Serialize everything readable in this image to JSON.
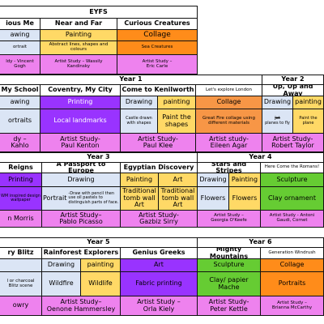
{
  "colors": {
    "purple": "#9933ff",
    "blue_light": "#dbe5f5",
    "orange": "#ff8c1a",
    "salmon": "#f79646",
    "yellow": "#ffd966",
    "pink": "#ee82ee",
    "green": "#66cc33",
    "white": "#ffffff"
  },
  "eyfs": {
    "title": "EYFS",
    "topics": [
      "ious Me",
      "Near and Far",
      "Curious Creatures"
    ],
    "row1": [
      "awing",
      "Painting",
      "Collage"
    ],
    "row2": [
      "ortrait",
      "Abstract lines, shapes and colours",
      "Sea Creatures"
    ],
    "row3": [
      "ldy - Vincent\nGogh",
      "Artist Study – Wassily\nKandinsky",
      "Artist Study –\nEric Carle"
    ]
  },
  "year1": {
    "header": "Year 1",
    "topics": [
      "My School",
      "Coventry, My City",
      "Come to Kenilworth",
      "Let's explore London"
    ],
    "row1": [
      "awing",
      "Printing",
      "Drawing",
      "painting",
      "Collage"
    ],
    "row2": [
      "ortraits",
      "Local landmarks",
      "Castle drawn with shapes",
      "Paint the shapes",
      "Great Fire collage using different materials"
    ],
    "row3": [
      "dy –\n Kahlo",
      "Artist Study-\nPaul Kenton",
      "Artist Study-\nPaul Klee",
      "Artist study-\nEileen Agar"
    ]
  },
  "year2": {
    "header": "Year 2",
    "topic": "Up, Up and Away",
    "row1": [
      "Drawing",
      "painting"
    ],
    "row2a_struck": "Jet",
    "row2a": "planes to fly",
    "row2b": "Paint the plane",
    "row3": "Artist Study-\nRobert Taylor"
  },
  "year3": {
    "header": "Year 3",
    "topics": [
      "Reigns",
      "A Passport to Europe",
      "Egyptian Discovery"
    ],
    "row1": [
      "Printing",
      "Drawing",
      "Painting",
      "Art"
    ],
    "row2": [
      "WM inspired design wallpaper",
      "Portrait",
      "-Draw with pencil then use oil pastels to distinguish parts of face.",
      "Traditional tomb wall Art",
      "Traditional tomb wall Art"
    ],
    "row3": [
      "n Morris",
      "Artist Study–\nPablo Picasso",
      "Artist Study-\nGazbiz Sirry"
    ]
  },
  "year4": {
    "header": "Year 4",
    "topics": [
      "Stars and Stripes",
      "Here Come the Romans!"
    ],
    "row1": [
      "Drawing",
      "Painting",
      "Sculpture"
    ],
    "row2": [
      "Flowers",
      "Flowers",
      "Clay ornament"
    ],
    "row3": [
      "Artist Study –\nGeorgia O'Keefe",
      "Artist Study - Antoni\nGaudi, Cornet"
    ]
  },
  "year5": {
    "header": "Year 5",
    "topics": [
      "ry Blitz",
      "Rainforest Explorers",
      "Genius Greeks"
    ],
    "row1": [
      "Drawing",
      "painting",
      "Art"
    ],
    "row2": [
      "l or charcoal\nBlitz scene",
      "Wildfire",
      "Wildlife",
      "Fabric printing"
    ],
    "row3": [
      "owry",
      "Artist Study–\nOenone Hammersley",
      "Artist Study –\nOrla Kiely"
    ]
  },
  "year6": {
    "header": "Year 6",
    "topics": [
      "Mighty Mountains",
      "Generation Windrush"
    ],
    "row1": [
      "Sculpture",
      "Collage"
    ],
    "row2": [
      "Clay/ papier\nMache",
      "Portraits"
    ],
    "row3": [
      "Artist Study-\nPeter Kettle",
      "Artist Study –\nBrianna McCarthy"
    ]
  }
}
